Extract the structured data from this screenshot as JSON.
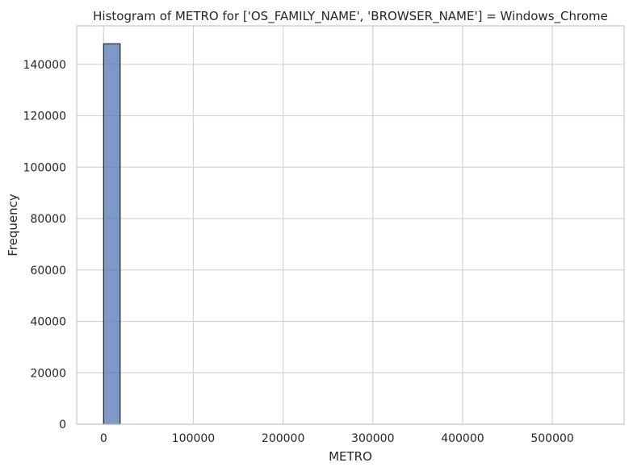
{
  "chart_data": {
    "type": "bar",
    "title": "Histogram of METRO for ['OS_FAMILY_NAME', 'BROWSER_NAME'] = Windows_Chrome",
    "xlabel": "METRO",
    "ylabel": "Frequency",
    "xlim": [
      -30000,
      580000
    ],
    "ylim": [
      0,
      155000
    ],
    "x_ticks": [
      0,
      100000,
      200000,
      300000,
      400000,
      500000
    ],
    "x_tick_labels": [
      "0",
      "100000",
      "200000",
      "300000",
      "400000",
      "500000"
    ],
    "y_ticks": [
      0,
      20000,
      40000,
      60000,
      80000,
      100000,
      120000,
      140000
    ],
    "y_tick_labels": [
      "0",
      "20000",
      "40000",
      "60000",
      "80000",
      "100000",
      "120000",
      "140000"
    ],
    "grid": true,
    "bars": [
      {
        "x0": 0,
        "x1": 18400,
        "count": 148000
      }
    ],
    "colors": {
      "bar_fill": "#4c72b0",
      "bar_edge": "#262626",
      "grid": "#d3d3d3",
      "spine": "#c8c8c8"
    }
  }
}
